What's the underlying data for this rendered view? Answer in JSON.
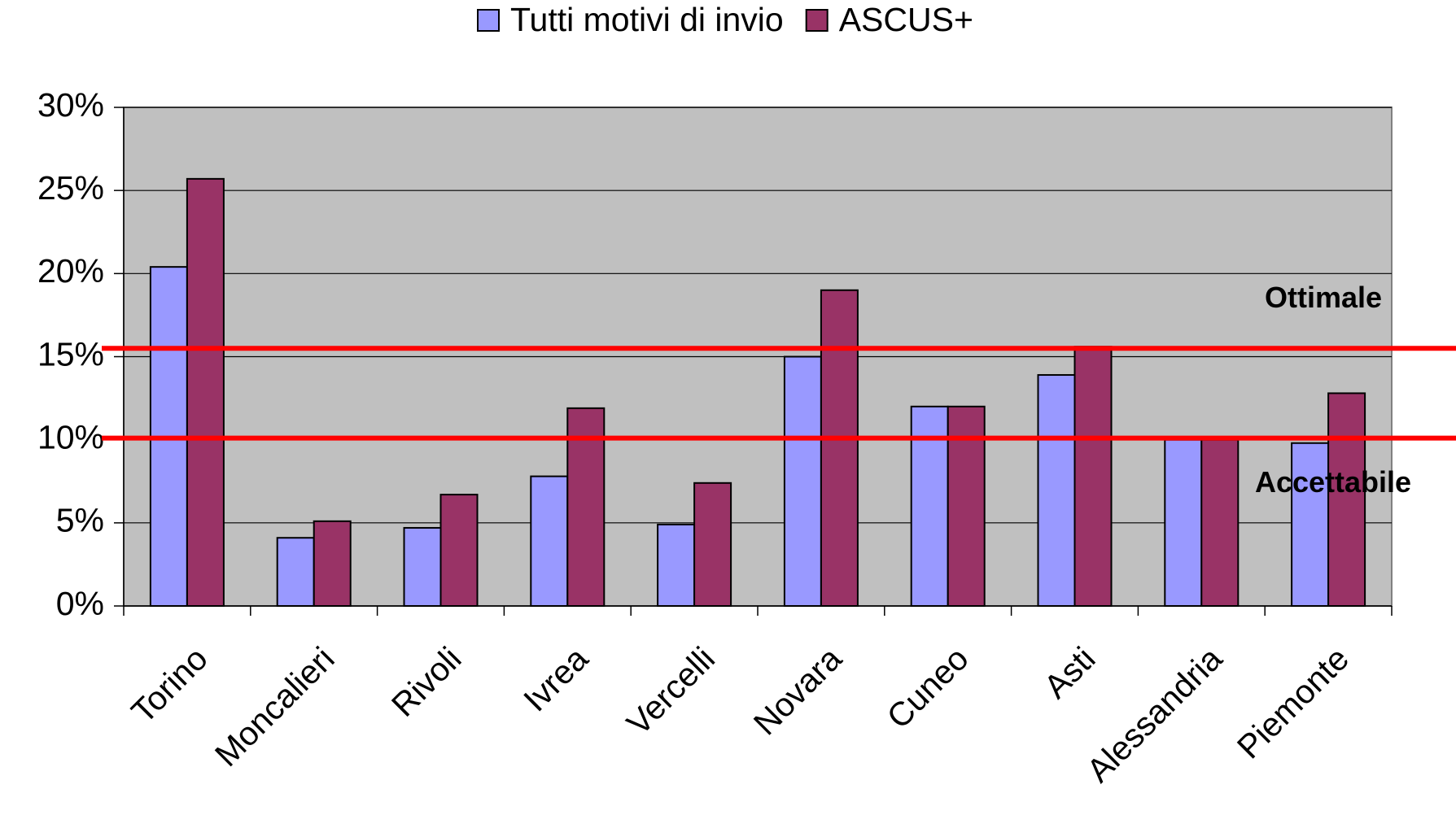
{
  "chart_data": {
    "type": "bar",
    "categories": [
      "Torino",
      "Moncalieri",
      "Rivoli",
      "Ivrea",
      "Vercelli",
      "Novara",
      "Cuneo",
      "Asti",
      "Alessandria",
      "Piemonte"
    ],
    "series": [
      {
        "name": "Tutti motivi di invio",
        "color": "#9999ff",
        "values": [
          20.4,
          4.1,
          4.7,
          7.8,
          4.9,
          15.0,
          12.0,
          13.9,
          10.0,
          9.8
        ]
      },
      {
        "name": "ASCUS+",
        "color": "#993366",
        "values": [
          25.7,
          5.1,
          6.7,
          11.9,
          7.4,
          19.0,
          12.0,
          15.6,
          10.0,
          12.8
        ]
      }
    ],
    "ylim": [
      0,
      30
    ],
    "yticks": [
      {
        "value": 0,
        "label": "0%"
      },
      {
        "value": 5,
        "label": "5%"
      },
      {
        "value": 10,
        "label": "10%"
      },
      {
        "value": 15,
        "label": "15%"
      },
      {
        "value": 20,
        "label": "20%"
      },
      {
        "value": 25,
        "label": "25%"
      },
      {
        "value": 30,
        "label": "30%"
      }
    ],
    "grid": true,
    "reference_lines": [
      {
        "value": 15.5,
        "label": "Ottimale",
        "color": "#ff0000"
      },
      {
        "value": 10.1,
        "label": "Accettabile",
        "color": "#ff0000"
      }
    ]
  }
}
